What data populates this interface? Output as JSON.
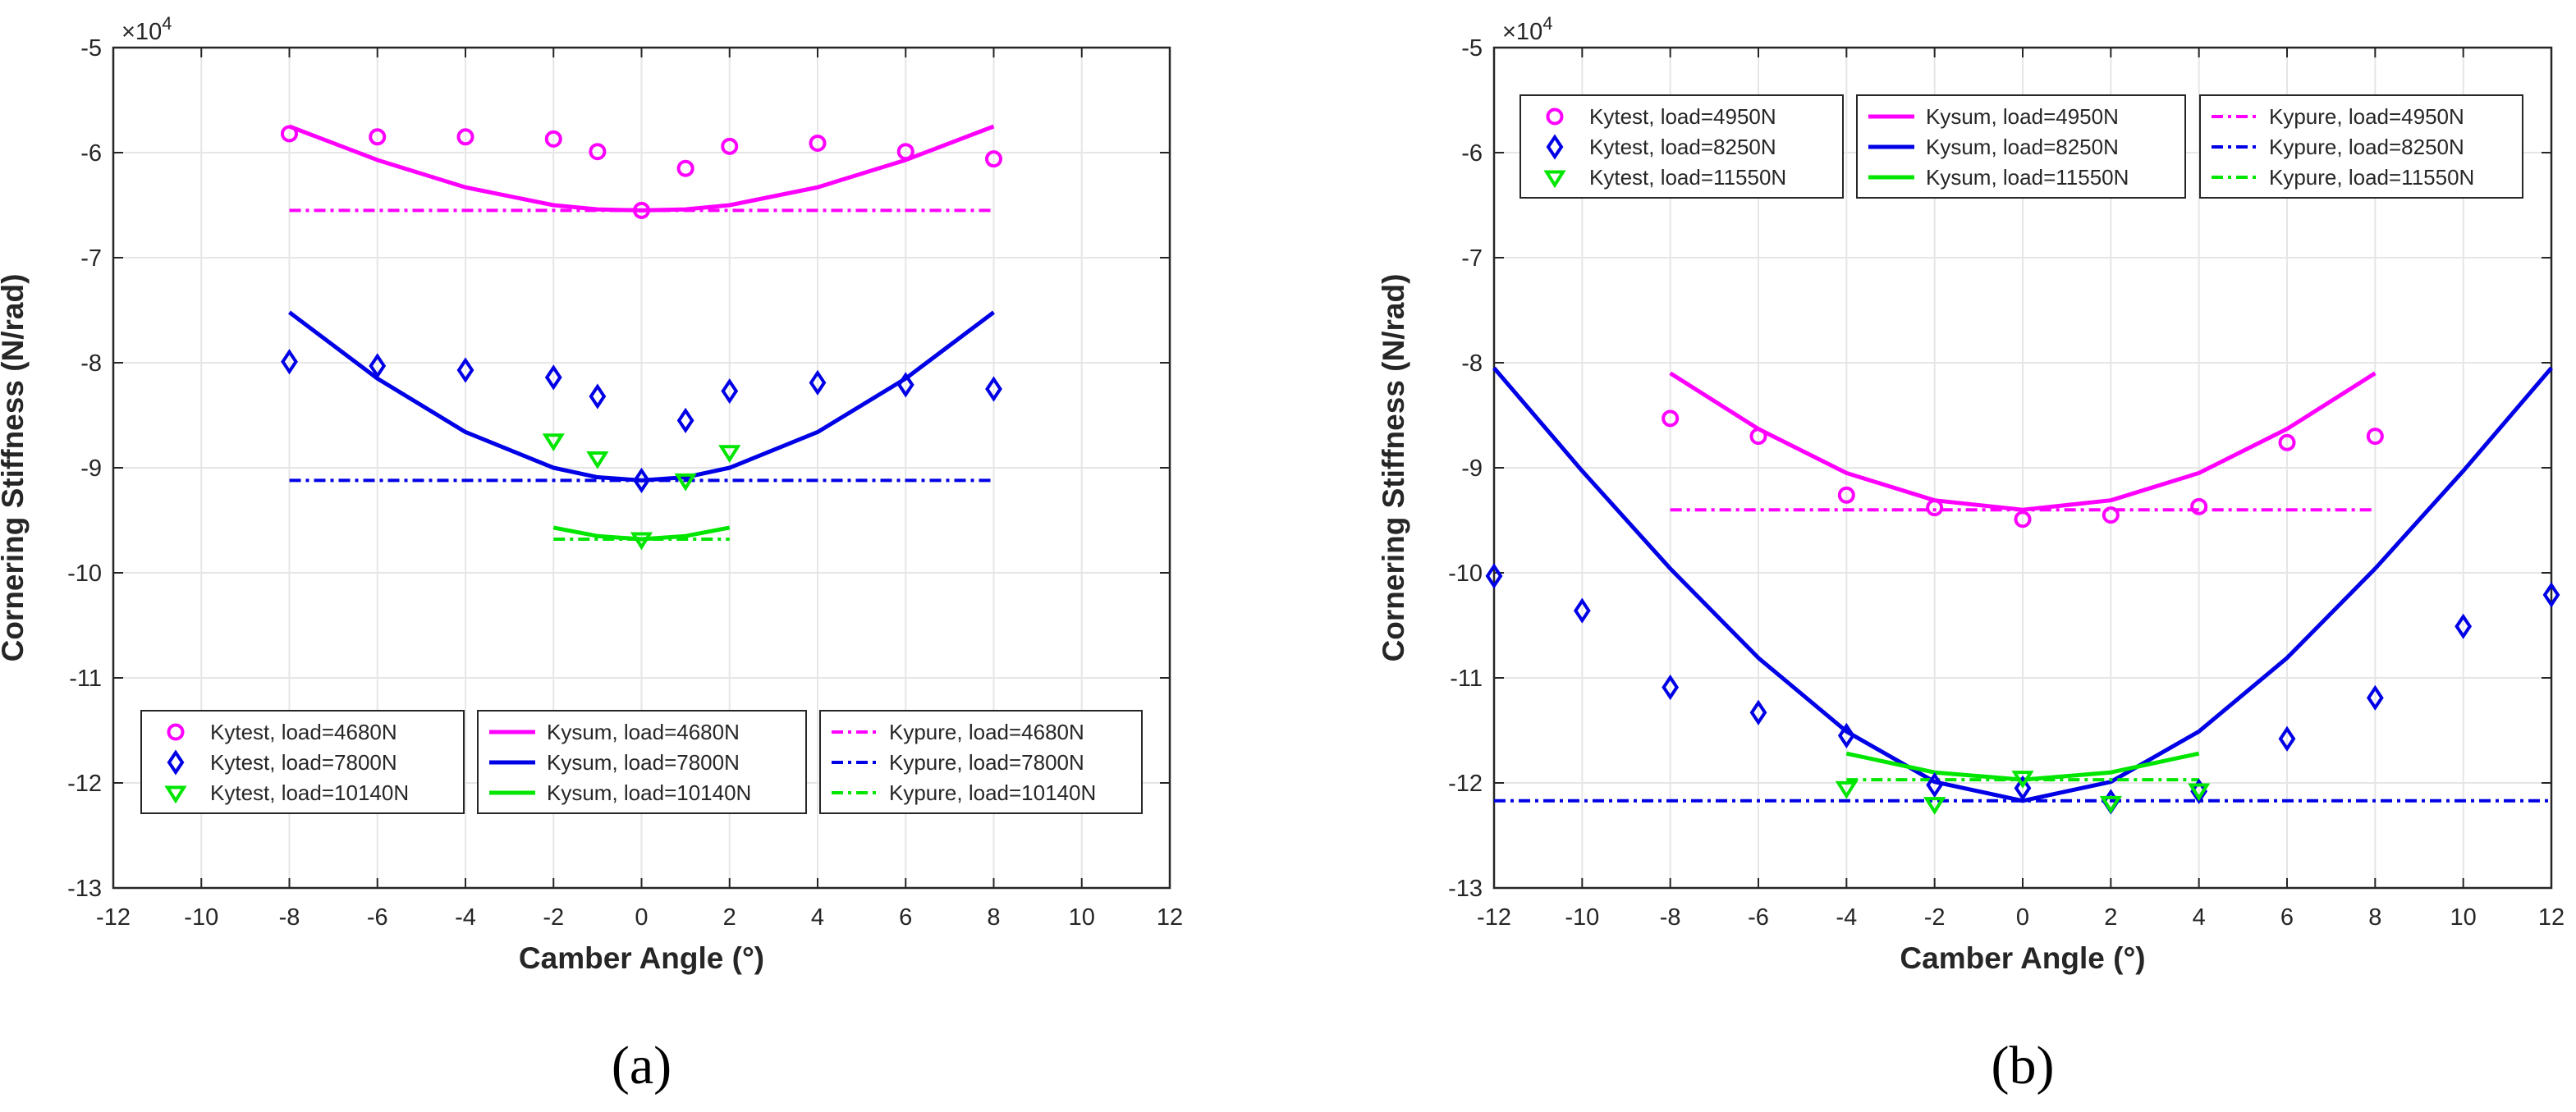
{
  "colors": {
    "magenta": "#ff00ff",
    "blue": "#0000e6",
    "green": "#00e600",
    "axis": "#262626",
    "grid": "#e6e6e6"
  },
  "chart_data": [
    {
      "type": "line",
      "panel_label": "(a)",
      "title": "",
      "xlabel": "Camber Angle (°)",
      "ylabel": "Cornering Stiffness (N/rad)",
      "y_exponent": "×10",
      "y_exponent_power": "4",
      "xlim": [
        -12,
        12
      ],
      "ylim": [
        -13,
        -5
      ],
      "xticks": [
        -12,
        -10,
        -8,
        -6,
        -4,
        -2,
        0,
        2,
        4,
        6,
        8,
        10,
        12
      ],
      "yticks": [
        -13,
        -12,
        -11,
        -10,
        -9,
        -8,
        -7,
        -6,
        -5
      ],
      "grid": true,
      "legend_position": "bottom",
      "series": [
        {
          "name": "Kytest, load=4680N",
          "kind": "markers",
          "marker": "circle",
          "color": "magenta",
          "x": [
            -8,
            -6,
            -4,
            -2,
            -1,
            0,
            1,
            2,
            4,
            6,
            8
          ],
          "y": [
            -5.82,
            -5.85,
            -5.85,
            -5.87,
            -5.99,
            -6.55,
            -6.15,
            -5.94,
            -5.91,
            -5.99,
            -6.06
          ]
        },
        {
          "name": "Kytest, load=7800N",
          "kind": "markers",
          "marker": "diamond",
          "color": "blue",
          "x": [
            -8,
            -6,
            -4,
            -2,
            -1,
            0,
            1,
            2,
            4,
            6,
            8
          ],
          "y": [
            -7.99,
            -8.03,
            -8.07,
            -8.14,
            -8.32,
            -9.12,
            -8.55,
            -8.27,
            -8.19,
            -8.21,
            -8.25
          ]
        },
        {
          "name": "Kytest, load=10140N",
          "kind": "markers",
          "marker": "triangle-down",
          "color": "green",
          "x": [
            -2,
            -1,
            0,
            1,
            2
          ],
          "y": [
            -8.74,
            -8.91,
            -9.68,
            -9.12,
            -8.85
          ]
        },
        {
          "name": "Kysum, load=4680N",
          "kind": "solid",
          "color": "magenta",
          "x": [
            -8,
            -6,
            -4,
            -2,
            -1,
            0,
            1,
            2,
            4,
            6,
            8
          ],
          "y": [
            -5.75,
            -6.07,
            -6.33,
            -6.5,
            -6.54,
            -6.55,
            -6.54,
            -6.5,
            -6.33,
            -6.07,
            -5.75
          ]
        },
        {
          "name": "Kysum, load=7800N",
          "kind": "solid",
          "color": "blue",
          "x": [
            -8,
            -6,
            -4,
            -2,
            -1,
            0,
            1,
            2,
            4,
            6,
            8
          ],
          "y": [
            -7.52,
            -8.15,
            -8.66,
            -9.0,
            -9.09,
            -9.12,
            -9.09,
            -9.0,
            -8.66,
            -8.15,
            -7.52
          ]
        },
        {
          "name": "Kysum, load=10140N",
          "kind": "solid",
          "color": "green",
          "x": [
            -2,
            -1,
            0,
            1,
            2
          ],
          "y": [
            -9.57,
            -9.65,
            -9.68,
            -9.65,
            -9.57
          ]
        },
        {
          "name": "Kypure, load=4680N",
          "kind": "dashdot",
          "color": "magenta",
          "x": [
            -8,
            8
          ],
          "y": [
            -6.55,
            -6.55
          ]
        },
        {
          "name": "Kypure, load=7800N",
          "kind": "dashdot",
          "color": "blue",
          "x": [
            -8,
            8
          ],
          "y": [
            -9.12,
            -9.12
          ]
        },
        {
          "name": "Kypure, load=10140N",
          "kind": "dashdot",
          "color": "green",
          "x": [
            -2,
            2
          ],
          "y": [
            -9.68,
            -9.68
          ]
        }
      ]
    },
    {
      "type": "line",
      "panel_label": "(b)",
      "title": "",
      "xlabel": "Camber Angle (°)",
      "ylabel": "Cornering Stiffness (N/rad)",
      "y_exponent": "×10",
      "y_exponent_power": "4",
      "xlim": [
        -12,
        12
      ],
      "ylim": [
        -13,
        -5
      ],
      "xticks": [
        -12,
        -10,
        -8,
        -6,
        -4,
        -2,
        0,
        2,
        4,
        6,
        8,
        10,
        12
      ],
      "yticks": [
        -13,
        -12,
        -11,
        -10,
        -9,
        -8,
        -7,
        -6,
        -5
      ],
      "grid": true,
      "legend_position": "top",
      "series": [
        {
          "name": "Kytest, load=4950N",
          "kind": "markers",
          "marker": "circle",
          "color": "magenta",
          "x": [
            -8,
            -6,
            -4,
            -2,
            0,
            2,
            4,
            6,
            8
          ],
          "y": [
            -8.53,
            -8.7,
            -9.26,
            -9.38,
            -9.49,
            -9.45,
            -9.37,
            -8.76,
            -8.7
          ]
        },
        {
          "name": "Kytest, load=8250N",
          "kind": "markers",
          "marker": "diamond",
          "color": "blue",
          "x": [
            -12,
            -10,
            -8,
            -6,
            -4,
            -2,
            0,
            2,
            4,
            6,
            8,
            10,
            12
          ],
          "y": [
            -10.03,
            -10.36,
            -11.09,
            -11.33,
            -11.55,
            -12.02,
            -12.05,
            -12.18,
            -12.08,
            -11.58,
            -11.19,
            -10.51,
            -10.21
          ]
        },
        {
          "name": "Kytest, load=11550N",
          "kind": "markers",
          "marker": "triangle-down",
          "color": "green",
          "x": [
            -4,
            -2,
            0,
            2,
            4
          ],
          "y": [
            -12.05,
            -12.2,
            -11.95,
            -12.19,
            -12.07
          ]
        },
        {
          "name": "Kysum, load=4950N",
          "kind": "solid",
          "color": "magenta",
          "x": [
            -8,
            -6,
            -4,
            -2,
            0,
            2,
            4,
            6,
            8
          ],
          "y": [
            -8.1,
            -8.63,
            -9.05,
            -9.31,
            -9.4,
            -9.31,
            -9.05,
            -8.63,
            -8.1
          ]
        },
        {
          "name": "Kysum, load=8250N",
          "kind": "solid",
          "color": "blue",
          "x": [
            -12,
            -10,
            -8,
            -6,
            -4,
            -2,
            0,
            2,
            4,
            6,
            8,
            10,
            12
          ],
          "y": [
            -8.05,
            -9.03,
            -9.96,
            -10.81,
            -11.51,
            -11.99,
            -12.17,
            -11.99,
            -11.51,
            -10.81,
            -9.96,
            -9.03,
            -8.05
          ]
        },
        {
          "name": "Kysum, load=11550N",
          "kind": "solid",
          "color": "green",
          "x": [
            -4,
            -2,
            0,
            2,
            4
          ],
          "y": [
            -11.72,
            -11.9,
            -11.97,
            -11.9,
            -11.72
          ]
        },
        {
          "name": "Kypure, load=4950N",
          "kind": "dashdot",
          "color": "magenta",
          "x": [
            -8,
            8
          ],
          "y": [
            -9.4,
            -9.4
          ]
        },
        {
          "name": "Kypure, load=8250N",
          "kind": "dashdot",
          "color": "blue",
          "x": [
            -12,
            12
          ],
          "y": [
            -12.17,
            -12.17
          ]
        },
        {
          "name": "Kypure, load=11550N",
          "kind": "dashdot",
          "color": "green",
          "x": [
            -4,
            4
          ],
          "y": [
            -11.97,
            -11.97
          ]
        }
      ]
    }
  ]
}
